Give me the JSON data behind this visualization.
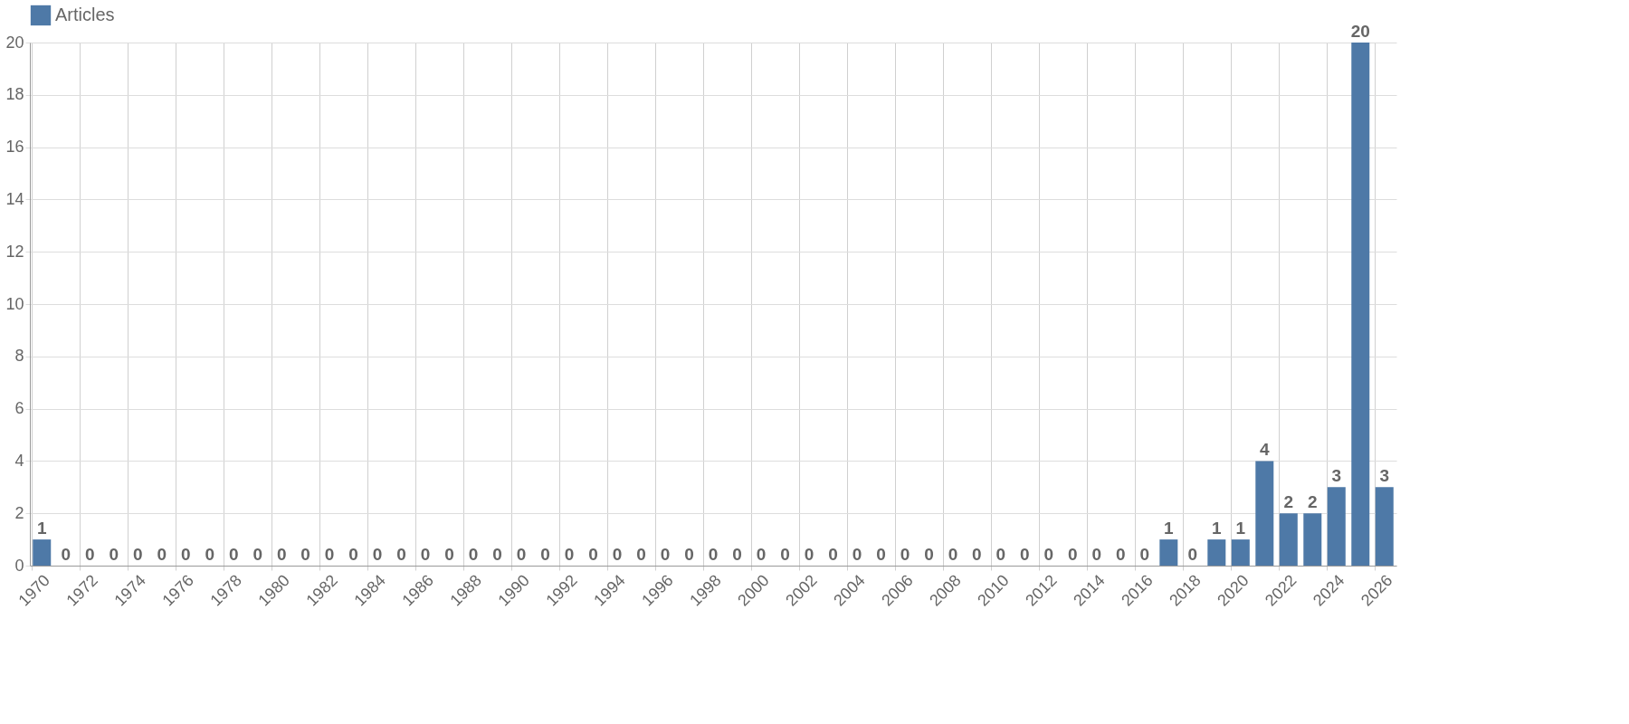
{
  "chart_data": {
    "type": "bar",
    "categories": [
      "1970",
      null,
      "1972",
      null,
      "1974",
      null,
      "1976",
      null,
      "1978",
      null,
      "1980",
      null,
      "1982",
      null,
      "1984",
      null,
      "1986",
      null,
      "1988",
      null,
      "1990",
      null,
      "1992",
      null,
      "1994",
      null,
      "1996",
      null,
      "1998",
      null,
      "2000",
      null,
      "2002",
      null,
      "2004",
      null,
      "2006",
      null,
      "2008",
      null,
      "2010",
      null,
      "2012",
      null,
      "2014",
      null,
      "2016",
      null,
      "2018",
      null,
      "2020",
      null,
      "2022",
      null,
      "2024",
      null,
      "2026"
    ],
    "series": [
      {
        "name": "Articles",
        "color": "#4e79a7",
        "values": [
          1,
          0,
          0,
          0,
          0,
          0,
          0,
          0,
          0,
          0,
          0,
          0,
          0,
          0,
          0,
          0,
          0,
          0,
          0,
          0,
          0,
          0,
          0,
          0,
          0,
          0,
          0,
          0,
          0,
          0,
          0,
          0,
          0,
          0,
          0,
          0,
          0,
          0,
          0,
          0,
          0,
          0,
          0,
          0,
          0,
          0,
          0,
          1,
          0,
          1,
          1,
          4,
          2,
          2,
          3,
          20,
          3
        ]
      }
    ],
    "ylim": [
      0,
      20
    ],
    "yticks": [
      0,
      2,
      4,
      6,
      8,
      10,
      12,
      14,
      16,
      18,
      20
    ],
    "grid": true,
    "legend": "top",
    "data_labels": true
  }
}
